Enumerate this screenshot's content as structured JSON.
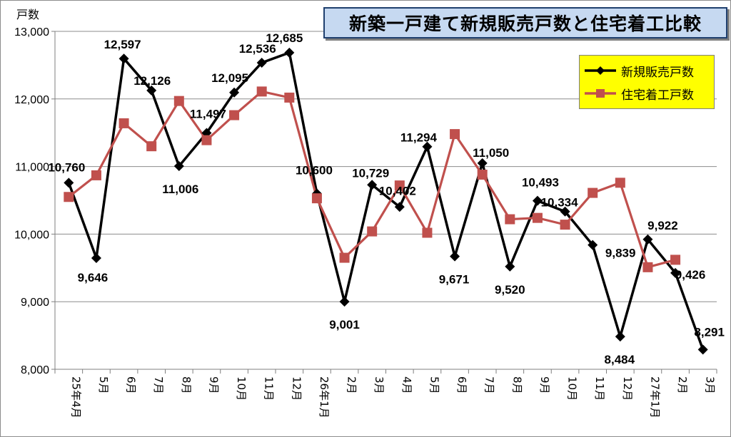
{
  "chart_data": {
    "type": "line",
    "title": "新築一戸建て新規販売戸数と住宅着工比較",
    "ylabel": "戸数",
    "ylim": [
      8000,
      13000
    ],
    "yticks": [
      "8,000",
      "9,000",
      "10,000",
      "11,000",
      "12,000",
      "13,000"
    ],
    "ytick_values": [
      8000,
      9000,
      10000,
      11000,
      12000,
      13000
    ],
    "categories": [
      "25年4月",
      "5月",
      "6月",
      "7月",
      "8月",
      "9月",
      "10月",
      "11月",
      "12月",
      "26年1月",
      "2月",
      "3月",
      "4月",
      "5月",
      "6月",
      "7月",
      "8月",
      "9月",
      "10月",
      "11月",
      "12月",
      "27年1月",
      "2月",
      "3月"
    ],
    "grid": true,
    "legend_position": "top-right",
    "series": [
      {
        "name": "新規販売戸数",
        "color": "#000000",
        "marker": "diamond",
        "values": [
          10760,
          9646,
          12597,
          12126,
          11006,
          11497,
          12095,
          12536,
          12685,
          10600,
          9001,
          10729,
          10402,
          11294,
          9671,
          11050,
          9520,
          10493,
          10334,
          9839,
          8484,
          9922,
          9426,
          8291
        ],
        "labels": [
          "10,760",
          "9,646",
          "12,597",
          "12,126",
          "11,006",
          "11,497",
          "12,095",
          "12,536",
          "12,685",
          "10,600",
          "9,001",
          "10,729",
          "10,402",
          "11,294",
          "9,671",
          "11,050",
          "9,520",
          "10,493",
          "10,334",
          "9,839",
          "8,484",
          "9,922",
          "9,426",
          "8,291"
        ]
      },
      {
        "name": "住宅着工戸数",
        "color": "#c0504d",
        "marker": "square",
        "values": [
          10550,
          10870,
          11640,
          11300,
          11970,
          11390,
          11760,
          12110,
          12020,
          10530,
          9650,
          10040,
          10720,
          10020,
          11480,
          10880,
          10220,
          10240,
          10140,
          10610,
          10760,
          9510,
          9620,
          null
        ]
      }
    ]
  }
}
